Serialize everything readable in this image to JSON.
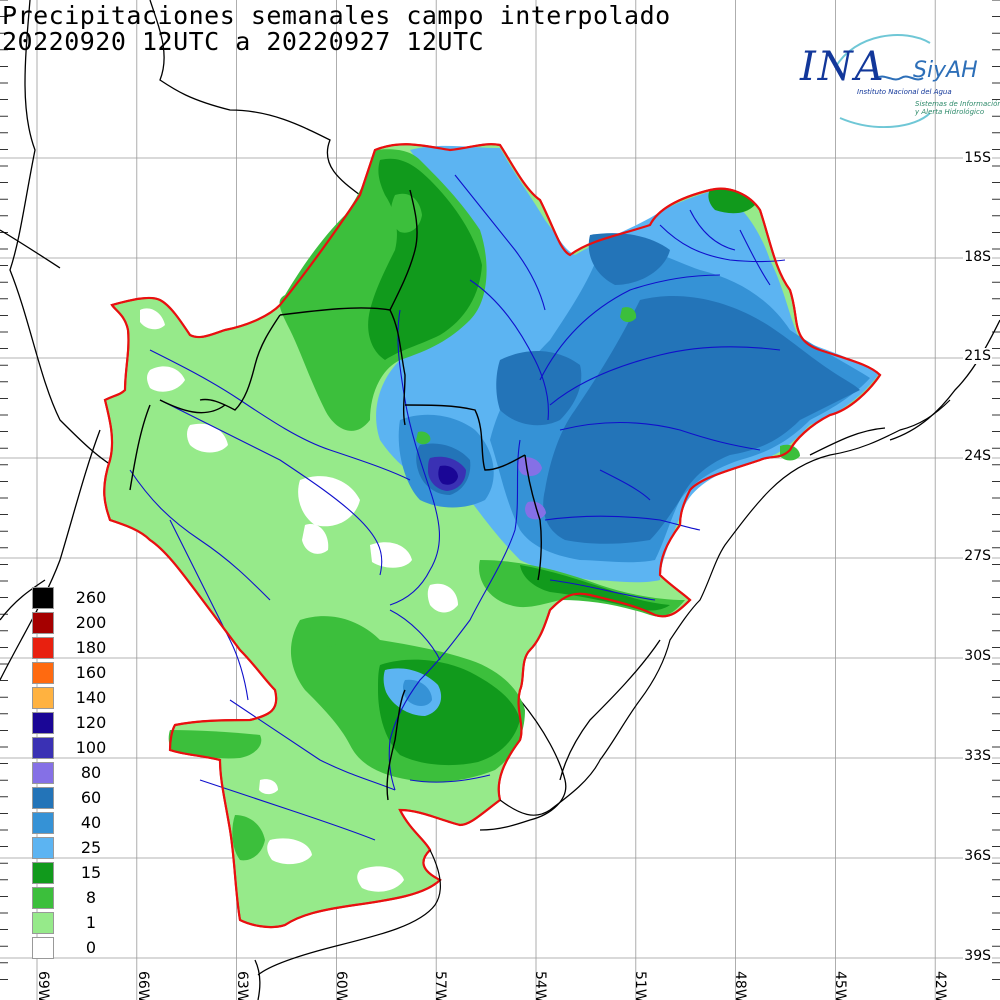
{
  "title": {
    "line1": "Precipitaciones semanales campo interpolado",
    "line2": "20220920 12UTC a 20220927 12UTC"
  },
  "logo": {
    "main": "INA",
    "brand": "SiyAH",
    "subtitle": "Instituto Nacional del Agua",
    "tagline_1": "Sistemas de Información",
    "tagline_2": "y Alerta Hidrológico"
  },
  "latitude_labels": [
    "15S",
    "18S",
    "21S",
    "24S",
    "27S",
    "30S",
    "33S",
    "36S",
    "39S"
  ],
  "longitude_labels": [
    "69W",
    "66W",
    "63W",
    "60W",
    "57W",
    "54W",
    "51W",
    "48W",
    "45W",
    "42W"
  ],
  "legend": {
    "unit_note": "",
    "items": [
      {
        "label": "260",
        "color": "#000000"
      },
      {
        "label": "200",
        "color": "#a50000"
      },
      {
        "label": "180",
        "color": "#e8200f"
      },
      {
        "label": "160",
        "color": "#ff6a10"
      },
      {
        "label": "140",
        "color": "#ffb240"
      },
      {
        "label": "120",
        "color": "#1a0696"
      },
      {
        "label": "100",
        "color": "#3a31b4"
      },
      {
        "label": "80",
        "color": "#8570e6"
      },
      {
        "label": "60",
        "color": "#2374b8"
      },
      {
        "label": "40",
        "color": "#3592d6"
      },
      {
        "label": "25",
        "color": "#5cb4f2"
      },
      {
        "label": "15",
        "color": "#119a1c"
      },
      {
        "label": "8",
        "color": "#3cbf3c"
      },
      {
        "label": "1",
        "color": "#96ea8a"
      },
      {
        "label": "0",
        "color": "#ffffff"
      }
    ]
  },
  "colors": {
    "basin_outline": "#e81010",
    "rivers": "#1010cc",
    "borders": "#000000",
    "grid": "#9a9a9a"
  }
}
